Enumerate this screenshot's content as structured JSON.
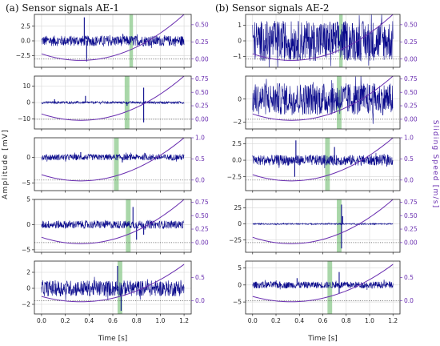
{
  "chart_data": [
    {
      "type": "line",
      "column": "a",
      "title": "(a) Sensor signals AE-1",
      "xlabel": "Time [s]",
      "ylabel": "Amplitude [mV]",
      "ylabel_right": "",
      "colors": {
        "signal": "#0a0a8c",
        "speed": "#6a2fb0",
        "band": "#8cc98c"
      },
      "panels": [
        {
          "ylim": [
            -4.5,
            4.5
          ],
          "yticks": [
            -2.5,
            0,
            2.5
          ],
          "yticklabels": [
            "−2.5",
            "0.0",
            "2.5"
          ],
          "y2lim": [
            -0.12,
            0.65
          ],
          "y2ticks": [
            0,
            0.25,
            0.5
          ],
          "y2ticklabels": [
            "0.00",
            "0.25",
            "0.50"
          ],
          "noise_amplitude": 0.9,
          "spikes": [
            [
              0.36,
              4.0
            ],
            [
              0.38,
              -3.5
            ]
          ],
          "band": [
            0.74,
            0.77
          ],
          "speed_min": [
            0.33,
            -0.02
          ],
          "speed_end": 0.65
        },
        {
          "ylim": [
            -16,
            16
          ],
          "yticks": [
            -10,
            0,
            10
          ],
          "yticklabels": [
            "−10",
            "0",
            "10"
          ],
          "y2lim": [
            -0.18,
            0.8
          ],
          "y2ticks": [
            0,
            0.25,
            0.5,
            0.75
          ],
          "y2ticklabels": [
            "0.00",
            "0.25",
            "0.50",
            "0.75"
          ],
          "noise_amplitude": 0.7,
          "spikes": [
            [
              0.11,
              2.0
            ],
            [
              0.37,
              4.0
            ],
            [
              0.72,
              -2.0
            ],
            [
              0.86,
              9.0
            ],
            [
              0.86,
              -12.0
            ]
          ],
          "band": [
            0.7,
            0.74
          ],
          "speed_min": [
            0.33,
            -0.02
          ],
          "speed_end": 0.8
        },
        {
          "ylim": [
            -6.5,
            3.8
          ],
          "yticks": [
            -5,
            0
          ],
          "yticklabels": [
            "−5",
            "0"
          ],
          "y2lim": [
            -0.25,
            1.0
          ],
          "y2ticks": [
            0,
            0.5,
            1.0
          ],
          "y2ticklabels": [
            "0.0",
            "0.5",
            "1.0"
          ],
          "noise_amplitude": 0.6,
          "spikes": [
            [
              0.33,
              1.0
            ],
            [
              0.68,
              -1.0
            ]
          ],
          "band": [
            0.61,
            0.65
          ],
          "speed_min": [
            0.33,
            -0.02
          ],
          "speed_end": 1.0
        },
        {
          "ylim": [
            -5.5,
            5.0
          ],
          "yticks": [
            -5,
            0,
            5
          ],
          "yticklabels": [
            "−5",
            "0",
            "5"
          ],
          "y2lim": [
            -0.18,
            0.8
          ],
          "y2ticks": [
            0,
            0.25,
            0.5,
            0.75
          ],
          "y2ticklabels": [
            "0.00",
            "0.25",
            "0.50",
            "0.75"
          ],
          "noise_amplitude": 0.8,
          "spikes": [
            [
              0.77,
              3.5
            ],
            [
              0.8,
              -3.0
            ],
            [
              0.86,
              -2.0
            ]
          ],
          "band": [
            0.71,
            0.75
          ],
          "speed_min": [
            0.33,
            -0.02
          ],
          "speed_end": 0.8
        },
        {
          "ylim": [
            -3.2,
            3.4
          ],
          "yticks": [
            -2,
            0,
            2
          ],
          "yticklabels": [
            "−2",
            "0",
            "2"
          ],
          "y2lim": [
            -0.28,
            0.85
          ],
          "y2ticks": [
            0,
            0.5
          ],
          "y2ticklabels": [
            "0.0",
            "0.5"
          ],
          "noise_amplitude": 1.0,
          "spikes": [
            [
              0.64,
              2.8
            ],
            [
              0.67,
              -2.8
            ]
          ],
          "band": [
            0.64,
            0.68
          ],
          "speed_min": [
            0.33,
            -0.02
          ],
          "speed_end": 0.78
        }
      ],
      "xlim": [
        -0.06,
        1.26
      ],
      "xticks": [
        0,
        0.2,
        0.4,
        0.6,
        0.8,
        1.0,
        1.2
      ],
      "xticklabels": [
        "0.0",
        "0.2",
        "0.4",
        "0.6",
        "0.8",
        "1.0",
        "1.2"
      ]
    },
    {
      "type": "line",
      "column": "b",
      "title": "(b) Sensor signals AE-2",
      "xlabel": "Time [s]",
      "ylabel": "",
      "ylabel_right": "Sliding Speed [m/s]",
      "colors": {
        "signal": "#0a0a8c",
        "speed": "#6a2fb0",
        "band": "#8cc98c"
      },
      "panels": [
        {
          "ylim": [
            -1.7,
            1.7
          ],
          "yticks": [
            -1,
            0,
            1
          ],
          "yticklabels": [
            "−1",
            "0",
            "1"
          ],
          "y2lim": [
            -0.12,
            0.65
          ],
          "y2ticks": [
            0,
            0.25,
            0.5
          ],
          "y2ticklabels": [
            "0.00",
            "0.25",
            "0.50"
          ],
          "noise_amplitude": 1.3,
          "spikes": [],
          "band": [
            0.74,
            0.77
          ],
          "speed_min": [
            0.33,
            -0.02
          ],
          "speed_end": 0.65
        },
        {
          "ylim": [
            -2.6,
            2.0
          ],
          "yticks": [
            -2,
            0
          ],
          "yticklabels": [
            "−2",
            "0"
          ],
          "y2lim": [
            -0.18,
            0.8
          ],
          "y2ticks": [
            0,
            0.25,
            0.5,
            0.75
          ],
          "y2ticklabels": [
            "0.00",
            "0.25",
            "0.50",
            "0.75"
          ],
          "noise_amplitude": 1.4,
          "spikes": [],
          "band": [
            0.72,
            0.76
          ],
          "speed_min": [
            0.33,
            -0.02
          ],
          "speed_end": 0.8
        },
        {
          "ylim": [
            -4.6,
            3.4
          ],
          "yticks": [
            -2.5,
            0,
            2.5
          ],
          "yticklabels": [
            "−2.5",
            "0.0",
            "2.5"
          ],
          "y2lim": [
            -0.25,
            1.0
          ],
          "y2ticks": [
            0,
            0.5,
            1.0
          ],
          "y2ticklabels": [
            "0.0",
            "0.5",
            "1.0"
          ],
          "noise_amplitude": 0.8,
          "spikes": [
            [
              0.37,
              3.0
            ],
            [
              0.36,
              -2.5
            ],
            [
              0.7,
              2.0
            ]
          ],
          "band": [
            0.62,
            0.66
          ],
          "speed_min": [
            0.33,
            -0.02
          ],
          "speed_end": 1.0
        },
        {
          "ylim": [
            -44,
            38
          ],
          "yticks": [
            -25,
            0,
            25
          ],
          "yticklabels": [
            "−25",
            "0",
            "25"
          ],
          "y2lim": [
            -0.18,
            0.8
          ],
          "y2ticks": [
            0,
            0.25,
            0.5,
            0.75
          ],
          "y2ticklabels": [
            "0.00",
            "0.25",
            "0.50",
            "0.75"
          ],
          "noise_amplitude": 1.0,
          "spikes": [
            [
              0.76,
              30.0
            ],
            [
              0.76,
              -38.0
            ],
            [
              0.77,
              12.0
            ]
          ],
          "band": [
            0.72,
            0.76
          ],
          "speed_min": [
            0.33,
            -0.02
          ],
          "speed_end": 0.8
        },
        {
          "ylim": [
            -8.5,
            7.0
          ],
          "yticks": [
            -5,
            0,
            5
          ],
          "yticklabels": [
            "−5",
            "0",
            "5"
          ],
          "y2lim": [
            -0.28,
            0.85
          ],
          "y2ticks": [
            0,
            0.5
          ],
          "y2ticklabels": [
            "0.0",
            "0.5"
          ],
          "noise_amplitude": 1.0,
          "spikes": [
            [
              0.38,
              2.0
            ],
            [
              0.74,
              3.8
            ],
            [
              0.74,
              -2.5
            ]
          ],
          "band": [
            0.64,
            0.68
          ],
          "speed_min": [
            0.33,
            -0.02
          ],
          "speed_end": 0.78
        }
      ],
      "xlim": [
        -0.06,
        1.26
      ],
      "xticks": [
        0,
        0.2,
        0.4,
        0.6,
        0.8,
        1.0,
        1.2
      ],
      "xticklabels": [
        "0.0",
        "0.2",
        "0.4",
        "0.6",
        "0.8",
        "1.0",
        "1.2"
      ]
    }
  ]
}
